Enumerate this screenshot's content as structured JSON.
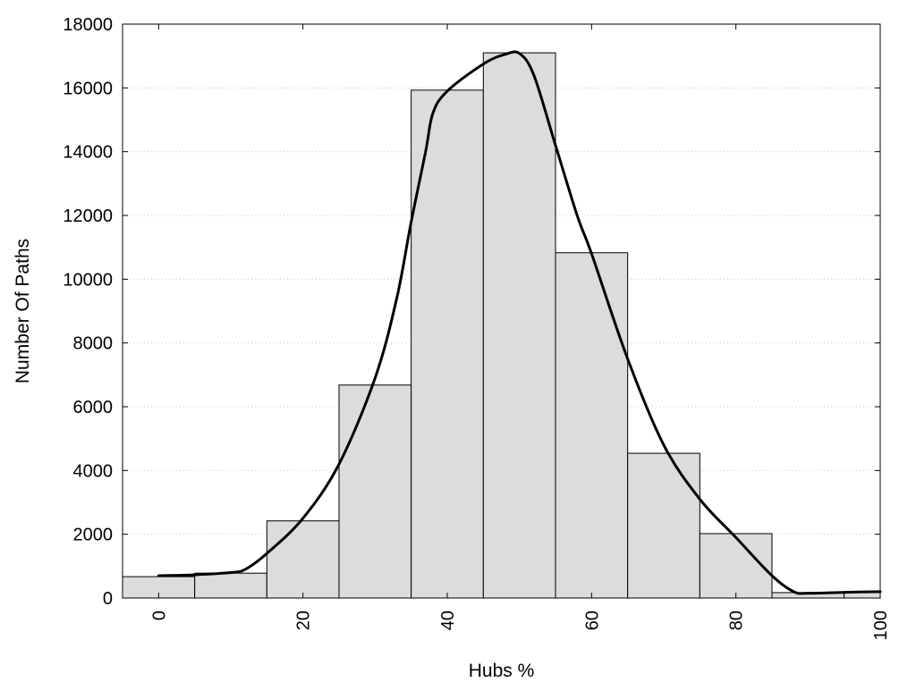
{
  "chart_data": {
    "type": "bar",
    "title": "",
    "xlabel": "Hubs %",
    "ylabel": "Number Of Paths",
    "xlim": [
      -5,
      100
    ],
    "ylim": [
      0,
      18000
    ],
    "x_ticks": [
      0,
      20,
      40,
      60,
      80,
      100
    ],
    "y_ticks": [
      0,
      2000,
      4000,
      6000,
      8000,
      10000,
      12000,
      14000,
      16000,
      18000
    ],
    "bin_width": 10,
    "grid": "horizontal-dotted",
    "bars": {
      "centers": [
        0,
        10,
        20,
        30,
        40,
        50,
        60,
        70,
        80,
        90,
        100
      ],
      "values": [
        670,
        780,
        2420,
        6680,
        15930,
        17100,
        10830,
        4540,
        2020,
        170,
        180
      ],
      "color": "#dcdcdc"
    },
    "density_curve": {
      "color": "#000000",
      "x": [
        0,
        5,
        10,
        12,
        15,
        20,
        25,
        30,
        33,
        35,
        37,
        38,
        40,
        45,
        48,
        50,
        52,
        55,
        58,
        60,
        65,
        70,
        75,
        80,
        85,
        88,
        90,
        95,
        100
      ],
      "y": [
        700,
        730,
        800,
        900,
        1400,
        2500,
        4200,
        6900,
        9400,
        11800,
        14000,
        15200,
        15900,
        16750,
        17050,
        17080,
        16400,
        14200,
        12000,
        10800,
        7500,
        4800,
        3100,
        1900,
        700,
        200,
        150,
        180,
        200
      ]
    }
  }
}
